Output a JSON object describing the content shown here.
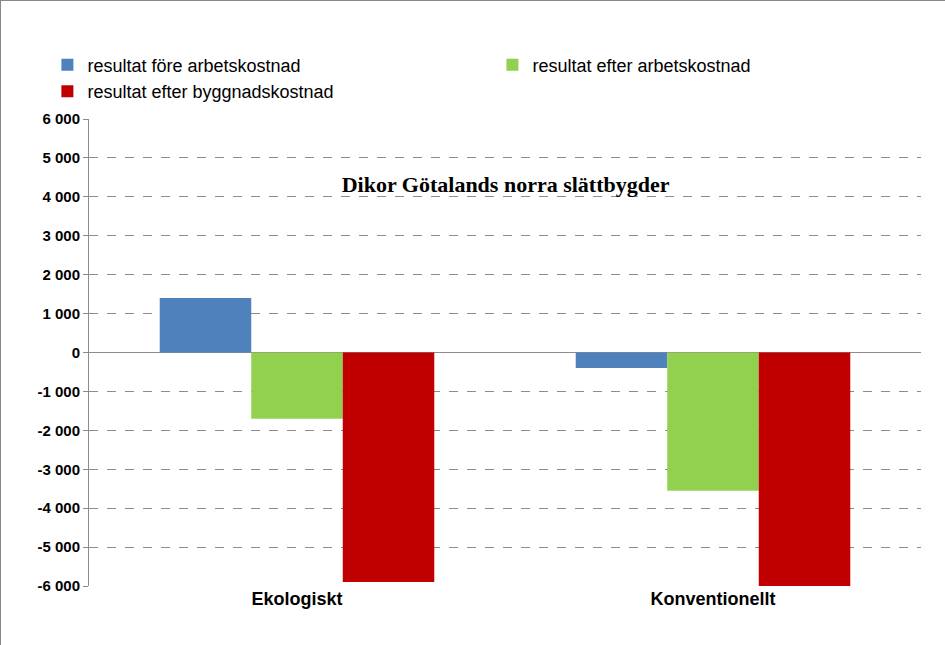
{
  "chart_data": {
    "type": "bar",
    "title": "Dikor Götalands norra slättbygder",
    "categories": [
      "Ekologiskt",
      "Konventionellt"
    ],
    "series": [
      {
        "name": "resultat före arbetskostnad",
        "color": "#4f81bd",
        "values": [
          1400,
          -400
        ]
      },
      {
        "name": "resultat efter arbetskostnad",
        "color": "#92d050",
        "values": [
          -1700,
          -3550
        ]
      },
      {
        "name": "resultat efter byggnadskostnad",
        "color": "#c00000",
        "values": [
          -5900,
          -6000
        ]
      }
    ],
    "ylim": [
      -6000,
      6000
    ],
    "yticks": [
      {
        "value": -6000,
        "label": "-6 000"
      },
      {
        "value": -5000,
        "label": "-5 000"
      },
      {
        "value": -4000,
        "label": "-4 000"
      },
      {
        "value": -3000,
        "label": "-3 000"
      },
      {
        "value": -2000,
        "label": "-2 000"
      },
      {
        "value": -1000,
        "label": "-1 000"
      },
      0,
      {
        "value": 1000,
        "label": "1 000"
      },
      {
        "value": 2000,
        "label": "2 000"
      },
      {
        "value": 3000,
        "label": "3 000"
      },
      {
        "value": 4000,
        "label": "4 000"
      },
      {
        "value": 5000,
        "label": "5 000"
      },
      {
        "value": 6000,
        "label": "6 000"
      }
    ],
    "grid": true,
    "legend": "top"
  }
}
